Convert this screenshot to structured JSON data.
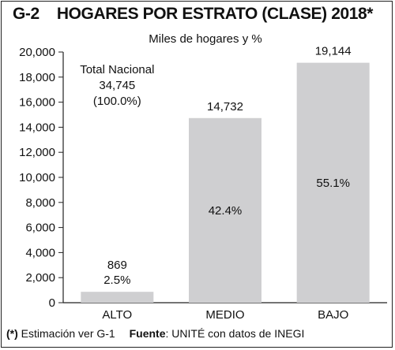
{
  "header": {
    "code": "G-2",
    "title": "HOGARES POR ESTRATO (CLASE) 2018*"
  },
  "chart_data": {
    "type": "bar",
    "title": "HOGARES POR ESTRATO (CLASE) 2018*",
    "subtitle": "Miles de hogares y %",
    "categories": [
      "ALTO",
      "MEDIO",
      "BAJO"
    ],
    "values": [
      869,
      14732,
      19144
    ],
    "value_labels": [
      "869",
      "14,732",
      "19,144"
    ],
    "percent_labels": [
      "2.5%",
      "42.4%",
      "55.1%"
    ],
    "yticks": [
      "0",
      "2,000",
      "4,000",
      "6,000",
      "8,000",
      "10,000",
      "12,000",
      "14,000",
      "16,000",
      "18,000",
      "20,000"
    ],
    "ylim": [
      0,
      20000
    ],
    "grid": false,
    "bar_color": "#cfcfd1",
    "annotation": [
      "Total Nacional",
      "34,745",
      "(100.0%)"
    ]
  },
  "footer": {
    "note_marker": "(*)",
    "note_text": " Estimación ver G-1",
    "source_label": "Fuente",
    "source_text": ": UNITÉ con datos de INEGI"
  }
}
